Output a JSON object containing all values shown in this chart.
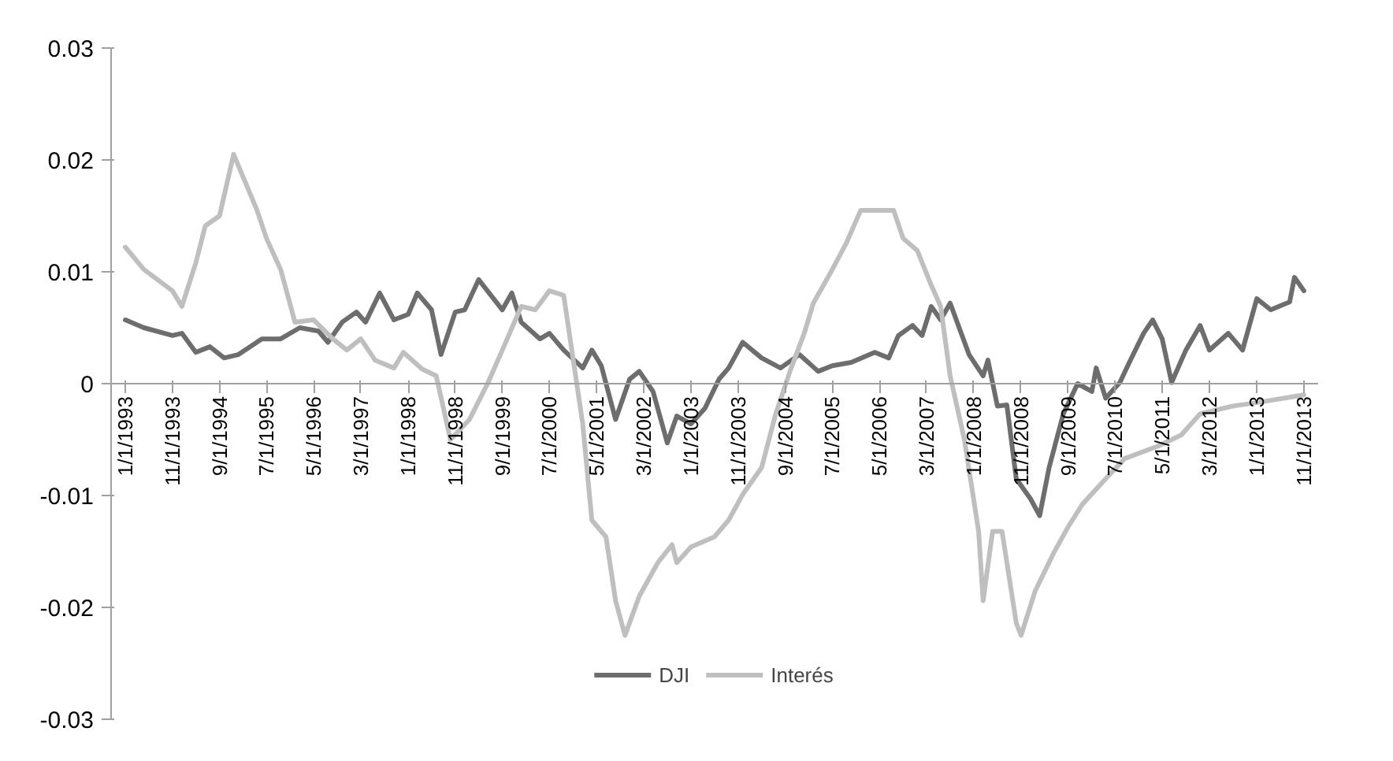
{
  "chart_data": {
    "type": "line",
    "xlim": [
      "1992-10",
      "2014-02"
    ],
    "xticks": [
      {
        "value": "1993-01",
        "label": "1/1/1993"
      },
      {
        "value": "1993-11",
        "label": "11/1/1993"
      },
      {
        "value": "1994-09",
        "label": "9/1/1994"
      },
      {
        "value": "1995-07",
        "label": "7/1/1995"
      },
      {
        "value": "1996-05",
        "label": "5/1/1996"
      },
      {
        "value": "1997-03",
        "label": "3/1/1997"
      },
      {
        "value": "1998-01",
        "label": "1/1/1998"
      },
      {
        "value": "1998-11",
        "label": "11/1/1998"
      },
      {
        "value": "1999-09",
        "label": "9/1/1999"
      },
      {
        "value": "2000-07",
        "label": "7/1/2000"
      },
      {
        "value": "2001-05",
        "label": "5/1/2001"
      },
      {
        "value": "2002-03",
        "label": "3/1/2002"
      },
      {
        "value": "2003-01",
        "label": "1/1/2003"
      },
      {
        "value": "2003-11",
        "label": "11/1/2003"
      },
      {
        "value": "2004-09",
        "label": "9/1/2004"
      },
      {
        "value": "2005-07",
        "label": "7/1/2005"
      },
      {
        "value": "2006-05",
        "label": "5/1/2006"
      },
      {
        "value": "2007-03",
        "label": "3/1/2007"
      },
      {
        "value": "2008-01",
        "label": "1/1/2008"
      },
      {
        "value": "2008-11",
        "label": "11/1/2008"
      },
      {
        "value": "2009-09",
        "label": "9/1/2009"
      },
      {
        "value": "2010-07",
        "label": "7/1/2010"
      },
      {
        "value": "2011-05",
        "label": "5/1/2011"
      },
      {
        "value": "2012-03",
        "label": "3/1/2012"
      },
      {
        "value": "2013-01",
        "label": "1/1/2013"
      },
      {
        "value": "2013-11",
        "label": "11/1/2013"
      }
    ],
    "ylim": [
      -0.03,
      0.03
    ],
    "yticks": [
      -0.03,
      -0.02,
      -0.01,
      0,
      0.01,
      0.02,
      0.03
    ],
    "grid": false,
    "legend": "bottom",
    "marker": "none",
    "line_style": "solid",
    "series": [
      {
        "name": "DJI",
        "color": "#6d6d6d",
        "x": [
          "1993-01",
          "1993-05",
          "1993-11",
          "1994-01",
          "1994-04",
          "1994-07",
          "1994-10",
          "1995-01",
          "1995-06",
          "1995-10",
          "1996-02",
          "1996-06",
          "1996-08",
          "1996-11",
          "1997-02",
          "1997-04",
          "1997-07",
          "1997-10",
          "1998-01",
          "1998-03",
          "1998-06",
          "1998-08",
          "1998-11",
          "1999-01",
          "1999-04",
          "1999-09",
          "1999-11",
          "2000-01",
          "2000-05",
          "2000-07",
          "2000-10",
          "2001-02",
          "2001-04",
          "2001-06",
          "2001-09",
          "2001-12",
          "2002-02",
          "2002-05",
          "2002-08",
          "2002-10",
          "2003-01",
          "2003-04",
          "2003-07",
          "2003-09",
          "2003-12",
          "2004-04",
          "2004-08",
          "2004-12",
          "2005-04",
          "2005-07",
          "2005-11",
          "2006-04",
          "2006-07",
          "2006-09",
          "2006-12",
          "2007-02",
          "2007-04",
          "2007-06",
          "2007-08",
          "2007-12",
          "2008-03",
          "2008-04",
          "2008-06",
          "2008-08",
          "2008-10",
          "2009-01",
          "2009-03",
          "2009-05",
          "2009-08",
          "2009-11",
          "2010-02",
          "2010-03",
          "2010-05",
          "2010-08",
          "2010-10",
          "2011-01",
          "2011-03",
          "2011-05",
          "2011-07",
          "2011-10",
          "2012-01",
          "2012-03",
          "2012-07",
          "2012-10",
          "2013-01",
          "2013-04",
          "2013-08",
          "2013-09",
          "2013-11"
        ],
        "values": [
          0.0057,
          0.005,
          0.0043,
          0.0045,
          0.0028,
          0.0033,
          0.0023,
          0.0026,
          0.004,
          0.004,
          0.005,
          0.0047,
          0.0037,
          0.0055,
          0.0064,
          0.0055,
          0.0081,
          0.0057,
          0.0062,
          0.0081,
          0.0066,
          0.0026,
          0.0064,
          0.0066,
          0.0093,
          0.0066,
          0.0081,
          0.0055,
          0.004,
          0.0045,
          0.003,
          0.0014,
          0.003,
          0.0016,
          -0.0032,
          0.0004,
          0.0011,
          -0.0007,
          -0.0053,
          -0.0029,
          -0.0036,
          -0.0022,
          0.0004,
          0.0014,
          0.0037,
          0.0023,
          0.0014,
          0.0026,
          0.0011,
          0.0016,
          0.0019,
          0.0028,
          0.0023,
          0.0043,
          0.0052,
          0.0043,
          0.0069,
          0.0057,
          0.0072,
          0.0026,
          0.0007,
          0.0021,
          -0.002,
          -0.0019,
          -0.0085,
          -0.0103,
          -0.0118,
          -0.0075,
          -0.0027,
          0,
          -0.0007,
          0.0014,
          -0.0013,
          0.0001,
          0.0019,
          0.0045,
          0.0057,
          0.004,
          0.0001,
          0.003,
          0.0052,
          0.003,
          0.0045,
          0.003,
          0.0076,
          0.0066,
          0.0073,
          0.0095,
          0.0083
        ]
      },
      {
        "name": "Interés",
        "color": "#bfbfbf",
        "x": [
          "1993-01",
          "1993-05",
          "1993-11",
          "1994-01",
          "1994-04",
          "1994-06",
          "1994-09",
          "1994-12",
          "1995-05",
          "1995-07",
          "1995-10",
          "1996-01",
          "1996-05",
          "1996-09",
          "1996-12",
          "1997-03",
          "1997-06",
          "1997-10",
          "1997-12",
          "1998-04",
          "1998-07",
          "1998-10",
          "1999-02",
          "1999-06",
          "1999-09",
          "2000-01",
          "2000-04",
          "2000-07",
          "2000-10",
          "2001-02",
          "2001-04",
          "2001-07",
          "2001-09",
          "2001-11",
          "2002-02",
          "2002-06",
          "2002-09",
          "2002-10",
          "2003-01",
          "2003-06",
          "2003-09",
          "2003-12",
          "2004-04",
          "2004-07",
          "2004-10",
          "2005-01",
          "2005-03",
          "2005-07",
          "2005-10",
          "2006-01",
          "2006-08",
          "2006-10",
          "2007-01",
          "2007-04",
          "2007-06",
          "2007-08",
          "2007-11",
          "2008-02",
          "2008-03",
          "2008-05",
          "2008-07",
          "2008-10",
          "2008-11",
          "2009-02",
          "2009-06",
          "2009-09",
          "2009-12",
          "2010-05",
          "2010-09",
          "2011-04",
          "2011-09",
          "2012-01",
          "2012-08",
          "2013-01",
          "2013-11"
        ],
        "values": [
          0.0122,
          0.0102,
          0.0083,
          0.0069,
          0.0108,
          0.0141,
          0.015,
          0.0205,
          0.0155,
          0.013,
          0.0102,
          0.0055,
          0.0057,
          0.004,
          0.003,
          0.004,
          0.0021,
          0.0014,
          0.0028,
          0.0013,
          0.0007,
          -0.005,
          -0.0032,
          0.0001,
          0.003,
          0.0069,
          0.0066,
          0.0083,
          0.0079,
          -0.0036,
          -0.0122,
          -0.0137,
          -0.0194,
          -0.0225,
          -0.019,
          -0.016,
          -0.0144,
          -0.016,
          -0.0146,
          -0.0137,
          -0.0122,
          -0.0099,
          -0.0075,
          -0.0027,
          0.0011,
          0.0045,
          0.0072,
          0.0102,
          0.0126,
          0.0155,
          0.0155,
          0.013,
          0.0119,
          0.0088,
          0.0069,
          0.0007,
          -0.005,
          -0.0132,
          -0.0194,
          -0.0132,
          -0.0132,
          -0.0214,
          -0.0225,
          -0.0185,
          -0.0151,
          -0.0128,
          -0.0108,
          -0.0085,
          -0.0067,
          -0.0056,
          -0.0046,
          -0.0027,
          -0.002,
          -0.0017,
          -0.001
        ]
      }
    ]
  }
}
